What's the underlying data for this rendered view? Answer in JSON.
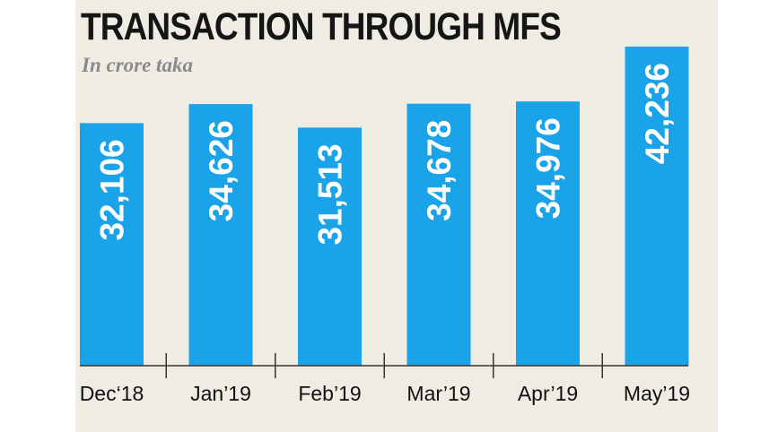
{
  "colors": {
    "bar": "#1aa3e8",
    "background": "#efece4",
    "axis": "#333333",
    "label": "#ffffff"
  },
  "chart_data": {
    "type": "bar",
    "title": "TRANSACTION THROUGH MFS",
    "subtitle": "In crore taka",
    "xlabel": "",
    "ylabel": "",
    "categories": [
      "Dec‘18",
      "Jan’19",
      "Feb’19",
      "Mar’19",
      "Apr’19",
      "May’19"
    ],
    "values": [
      32106,
      34626,
      31513,
      34678,
      34976,
      42236
    ],
    "value_labels": [
      "32,106",
      "34,626",
      "31,513",
      "34,678",
      "34,976",
      "42,236"
    ],
    "ylim": [
      0,
      42236
    ],
    "grid": false,
    "legend": "none"
  }
}
